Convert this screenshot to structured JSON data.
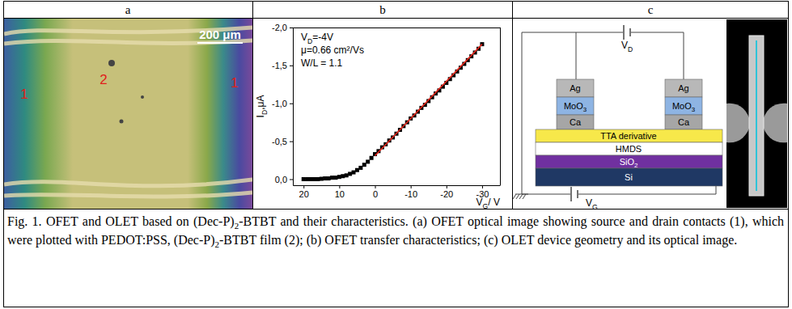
{
  "header": [
    "a",
    "b",
    "c"
  ],
  "panel_a": {
    "scale_bar": "200 μm",
    "labels": [
      "1",
      "2",
      "1"
    ]
  },
  "chart_data": {
    "type": "scatter",
    "x_label": [
      {
        "text": "V"
      },
      {
        "text": "G",
        "sub": true
      },
      {
        "text": "/ V"
      }
    ],
    "y_label": [
      {
        "text": "I"
      },
      {
        "text": "D",
        "sub": true
      },
      {
        "text": ",μA"
      }
    ],
    "annotations": [
      [
        {
          "text": "V"
        },
        {
          "text": "D",
          "sub": true
        },
        {
          "text": "=-4V"
        }
      ],
      "μ=0.66 cm²/Vs",
      "W/L = 1.1"
    ],
    "series": [
      {
        "type": "scatter",
        "marker": "square",
        "color": "#000000",
        "x": [
          20,
          19,
          18,
          17,
          16,
          15,
          14,
          13,
          12,
          11,
          10,
          9,
          8,
          7,
          6,
          5,
          4,
          3,
          2,
          1,
          0,
          -1,
          -2,
          -3,
          -4,
          -5,
          -6,
          -7,
          -8,
          -9,
          -10,
          -11,
          -12,
          -13,
          -14,
          -15,
          -16,
          -17,
          -18,
          -19,
          -20,
          -21,
          -22,
          -23,
          -24,
          -25,
          -26,
          -27,
          -28,
          -29,
          -30
        ],
        "values": [
          0,
          0,
          0,
          0,
          0,
          -0.005,
          -0.01,
          -0.01,
          -0.02,
          -0.02,
          -0.03,
          -0.04,
          -0.05,
          -0.07,
          -0.09,
          -0.12,
          -0.15,
          -0.19,
          -0.23,
          -0.28,
          -0.33,
          -0.37,
          -0.42,
          -0.46,
          -0.51,
          -0.55,
          -0.6,
          -0.65,
          -0.7,
          -0.75,
          -0.8,
          -0.84,
          -0.89,
          -0.94,
          -0.98,
          -1.03,
          -1.08,
          -1.13,
          -1.17,
          -1.22,
          -1.27,
          -1.32,
          -1.37,
          -1.42,
          -1.47,
          -1.52,
          -1.57,
          -1.62,
          -1.67,
          -1.72,
          -1.78
        ]
      },
      {
        "type": "line",
        "color": "#e3261b",
        "x": [
          0,
          -30
        ],
        "values": [
          -0.31,
          -1.78
        ]
      }
    ],
    "xlim": [
      23,
      -35
    ],
    "xticks": [
      20,
      10,
      0,
      -10,
      -20,
      -30
    ],
    "ylim": [
      0.08,
      -2.0
    ],
    "yticks": [
      {
        "value": -2.0,
        "label": "-2,0"
      },
      {
        "value": -1.5,
        "label": "-1,5"
      },
      {
        "value": -1.0,
        "label": "-1,0"
      },
      {
        "value": -0.5,
        "label": "-0,5"
      },
      {
        "value": 0.0,
        "label": "0,0"
      }
    ]
  },
  "panel_c": {
    "contact_layers": [
      "Ag",
      [
        {
          "text": "MoO"
        },
        {
          "text": "3",
          "sub": true
        }
      ],
      "Ca"
    ],
    "stack_layers": [
      "TTA derivative",
      "HMDS",
      [
        {
          "text": "SiO"
        },
        {
          "text": "2",
          "sub": true
        }
      ],
      "Si"
    ],
    "drain_voltage": [
      {
        "text": "V"
      },
      {
        "text": "D",
        "sub": true
      }
    ],
    "gate_voltage": [
      {
        "text": "V"
      },
      {
        "text": "G",
        "sub": true
      }
    ]
  },
  "caption": [
    {
      "text": "Fig. 1. OFET and OLET based on (Dec-P)"
    },
    {
      "text": "2",
      "sub": true
    },
    {
      "text": "-BTBT and their characteristics. (a) OFET optical image showing source and drain contacts (1), which were plotted with PEDOT:PSS, (Dec-P)"
    },
    {
      "text": "2",
      "sub": true
    },
    {
      "text": "-BTBT film (2); (b) OFET transfer characteristics; (c) OLET device geometry and its optical image."
    }
  ]
}
